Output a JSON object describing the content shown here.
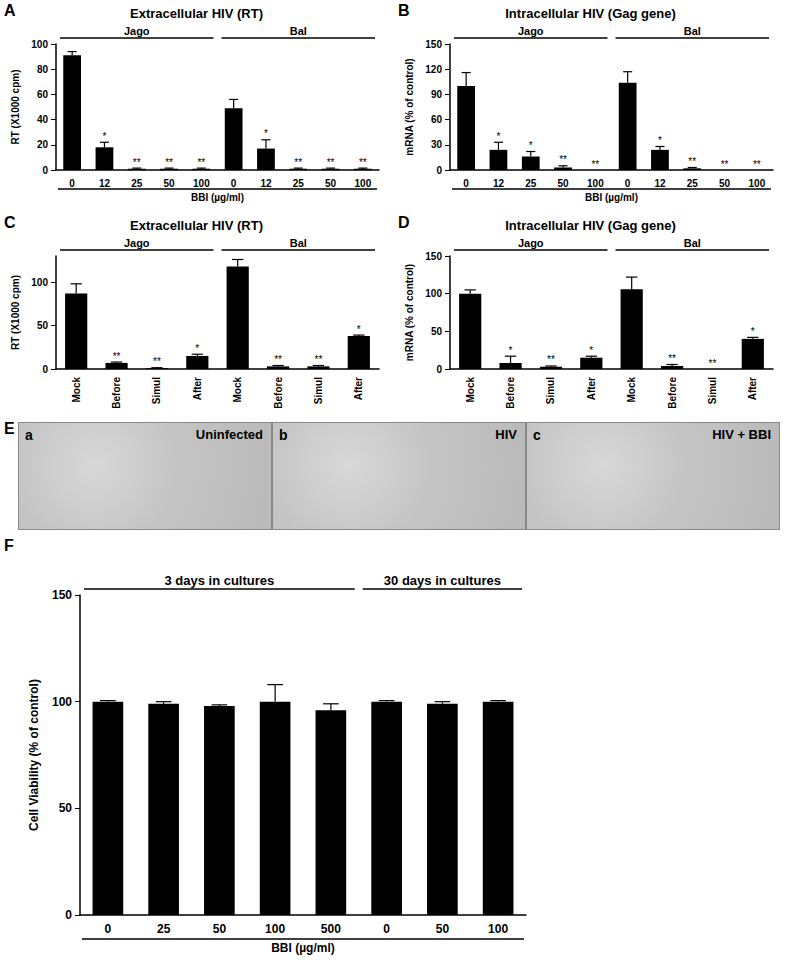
{
  "chart_data": [
    {
      "type": "bar",
      "panel": "A",
      "title": "Extracellular HIV (RT)",
      "y_label": "RT (X1000 cpm)",
      "x_label": "BBI (µg/ml)",
      "categories": [
        "0",
        "12",
        "25",
        "50",
        "100",
        "0",
        "12",
        "25",
        "50",
        "100"
      ],
      "values": [
        91,
        18,
        1,
        1,
        1,
        49,
        17,
        1,
        1,
        1
      ],
      "errors": [
        3,
        4,
        0.5,
        0.5,
        0.5,
        7,
        7,
        0.5,
        0.5,
        0.5
      ],
      "annotations": [
        "",
        "*",
        "**",
        "**",
        "**",
        "",
        "*",
        "**",
        "**",
        "**"
      ],
      "groups": [
        {
          "label": "Jago",
          "count": 5
        },
        {
          "label": "Bal",
          "count": 5
        }
      ],
      "color": "#000000",
      "ylim": [
        0,
        100
      ],
      "yticks": [
        0,
        20,
        40,
        60,
        80,
        100
      ],
      "grid": false
    },
    {
      "type": "bar",
      "panel": "B",
      "title": "Intracellular HIV (Gag gene)",
      "y_label": "mRNA (% of control)",
      "x_label": "BBI (µg/ml)",
      "categories": [
        "0",
        "12",
        "25",
        "50",
        "100",
        "0",
        "12",
        "25",
        "50",
        "100"
      ],
      "values": [
        100,
        24,
        16,
        3,
        0,
        104,
        24,
        2,
        0,
        0
      ],
      "errors": [
        16,
        9,
        6,
        2,
        0,
        13,
        4,
        1,
        0,
        0
      ],
      "annotations": [
        "",
        "*",
        "*",
        "**",
        "**",
        "",
        "*",
        "**",
        "**",
        "**"
      ],
      "groups": [
        {
          "label": "Jago",
          "count": 5
        },
        {
          "label": "Bal",
          "count": 5
        }
      ],
      "color": "#000000",
      "ylim": [
        0,
        150
      ],
      "yticks": [
        0,
        30,
        60,
        90,
        120,
        150
      ],
      "grid": false
    },
    {
      "type": "bar",
      "panel": "C",
      "title": "Extracellular HIV (RT)",
      "y_label": "RT (X1000 cpm)",
      "categories": [
        "Mock",
        "Before",
        "Simul",
        "After",
        "Mock",
        "Before",
        "Simul",
        "After"
      ],
      "values": [
        87,
        7,
        1,
        15,
        118,
        3,
        3,
        38
      ],
      "errors": [
        11,
        1,
        0.5,
        2,
        8,
        1,
        1,
        1
      ],
      "annotations": [
        "",
        "**",
        "**",
        "*",
        "",
        "**",
        "**",
        "*"
      ],
      "groups": [
        {
          "label": "Jago",
          "count": 4
        },
        {
          "label": "Bal",
          "count": 4
        }
      ],
      "color": "#000000",
      "ylim": [
        0,
        130
      ],
      "yticks": [
        0,
        50,
        100
      ],
      "grid": false
    },
    {
      "type": "bar",
      "panel": "D",
      "title": "Intracellular HIV (Gag gene)",
      "y_label": "mRNA (% of control)",
      "categories": [
        "Mock",
        "Before",
        "Simul",
        "After",
        "Mock",
        "Before",
        "Simul",
        "After"
      ],
      "values": [
        100,
        8,
        3,
        15,
        106,
        4,
        0,
        40
      ],
      "errors": [
        5,
        9,
        1,
        2,
        16,
        2,
        0,
        2
      ],
      "annotations": [
        "",
        "*",
        "**",
        "*",
        "",
        "**",
        "**",
        "*"
      ],
      "groups": [
        {
          "label": "Jago",
          "count": 4
        },
        {
          "label": "Bal",
          "count": 4
        }
      ],
      "color": "#000000",
      "ylim": [
        0,
        150
      ],
      "yticks": [
        0,
        50,
        100,
        150
      ],
      "grid": false
    },
    {
      "type": "bar",
      "panel": "F",
      "title": "",
      "y_label": "Cell Viability (% of control)",
      "x_label": "BBI (µg/ml)",
      "categories": [
        "0",
        "25",
        "50",
        "100",
        "500",
        "0",
        "50",
        "100"
      ],
      "values": [
        100,
        99,
        98,
        100,
        96,
        100,
        99,
        100
      ],
      "errors": [
        0.5,
        1,
        0.5,
        8,
        3,
        0.5,
        1,
        0.5
      ],
      "annotations": [
        "",
        "",
        "",
        "",
        "",
        "",
        "",
        ""
      ],
      "groups": [
        {
          "label": "3 days in cultures",
          "count": 5
        },
        {
          "label": "30 days in cultures",
          "count": 3
        }
      ],
      "color": "#000000",
      "ylim": [
        0,
        150
      ],
      "yticks": [
        0,
        50,
        100,
        150
      ],
      "grid": false
    }
  ],
  "panel_e": {
    "panel": "E",
    "images": [
      {
        "letter": "a",
        "caption": "Uninfected"
      },
      {
        "letter": "b",
        "caption": "HIV"
      },
      {
        "letter": "c",
        "caption": "HIV + BBI"
      }
    ]
  }
}
